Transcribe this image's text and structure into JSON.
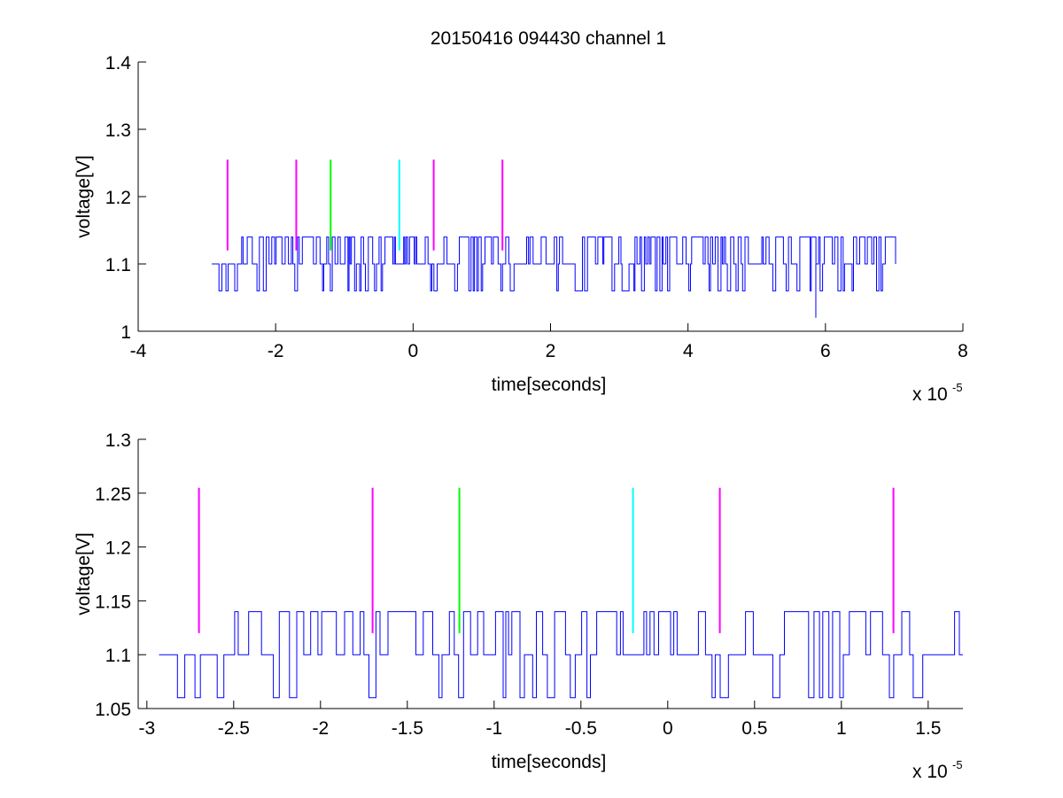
{
  "title": "20150416 094430 channel 1",
  "chart_data": [
    {
      "type": "line",
      "xlabel": "time[seconds]",
      "ylabel": "voltage[V]",
      "x_exponent_label": "x 10",
      "x_exponent": "-5",
      "xlim": [
        -4,
        8
      ],
      "ylim": [
        1,
        1.4
      ],
      "xticks": [
        -4,
        -2,
        0,
        2,
        4,
        6,
        8
      ],
      "xtick_labels": [
        "-4",
        "-2",
        "0",
        "2",
        "4",
        "6",
        "8"
      ],
      "yticks": [
        1,
        1.1,
        1.2,
        1.3,
        1.4
      ],
      "ytick_labels": [
        "1",
        "1.1",
        "1.2",
        "1.3",
        "1.4"
      ],
      "grid": false,
      "series": [
        {
          "type": "step",
          "color": "#0000ff",
          "x_range": [
            -2.93,
            7.02
          ],
          "levels": [
            1.06,
            1.1,
            1.14
          ],
          "baseline": 1.1,
          "outliers": [
            {
              "x": 5.86,
              "y": 1.02
            }
          ]
        }
      ],
      "markers": [
        {
          "x": -2.7,
          "y0": 1.12,
          "y1": 1.255,
          "color": "#ff00ff"
        },
        {
          "x": -1.7,
          "y0": 1.12,
          "y1": 1.255,
          "color": "#ff00ff"
        },
        {
          "x": -1.2,
          "y0": 1.12,
          "y1": 1.255,
          "color": "#00ff00"
        },
        {
          "x": -0.2,
          "y0": 1.12,
          "y1": 1.255,
          "color": "#00ffff"
        },
        {
          "x": 0.3,
          "y0": 1.12,
          "y1": 1.255,
          "color": "#ff00ff"
        },
        {
          "x": 1.3,
          "y0": 1.12,
          "y1": 1.255,
          "color": "#ff00ff"
        }
      ]
    },
    {
      "type": "line",
      "xlabel": "time[seconds]",
      "ylabel": "voltage[V]",
      "x_exponent_label": "x 10",
      "x_exponent": "-5",
      "xlim": [
        -3.05,
        1.7
      ],
      "ylim": [
        1.05,
        1.3
      ],
      "xticks": [
        -3,
        -2.5,
        -2,
        -1.5,
        -1,
        -0.5,
        0,
        0.5,
        1,
        1.5
      ],
      "xtick_labels": [
        "-3",
        "-2.5",
        "-2",
        "-1.5",
        "-1",
        "-0.5",
        "0",
        "0.5",
        "1",
        "1.5"
      ],
      "yticks": [
        1.05,
        1.1,
        1.15,
        1.2,
        1.25,
        1.3
      ],
      "ytick_labels": [
        "1.05",
        "1.1",
        "1.15",
        "1.2",
        "1.25",
        "1.3"
      ],
      "grid": false,
      "series": [
        {
          "type": "step",
          "color": "#0000ff",
          "x_range": [
            -2.93,
            1.7
          ],
          "levels": [
            1.06,
            1.1,
            1.14
          ],
          "baseline": 1.1
        }
      ],
      "markers": [
        {
          "x": -2.7,
          "y0": 1.12,
          "y1": 1.255,
          "color": "#ff00ff"
        },
        {
          "x": -1.7,
          "y0": 1.12,
          "y1": 1.255,
          "color": "#ff00ff"
        },
        {
          "x": -1.2,
          "y0": 1.12,
          "y1": 1.255,
          "color": "#00ff00"
        },
        {
          "x": -0.2,
          "y0": 1.12,
          "y1": 1.255,
          "color": "#00ffff"
        },
        {
          "x": 0.3,
          "y0": 1.12,
          "y1": 1.255,
          "color": "#ff00ff"
        },
        {
          "x": 1.3,
          "y0": 1.12,
          "y1": 1.255,
          "color": "#ff00ff"
        }
      ]
    }
  ]
}
